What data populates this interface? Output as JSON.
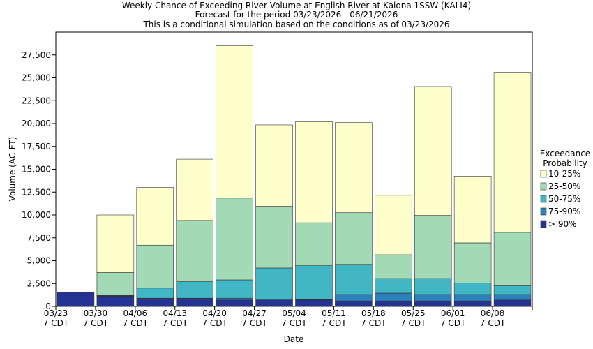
{
  "chart_data": {
    "type": "stacked-bar",
    "title": "Weekly Chance of Exceeding River Volume at English River at Kalona 1SSW (KALI4)",
    "subtitle": "Forecast for the period 03/23/2026 - 06/21/2026",
    "note": "This is a conditional simulation based on the conditions as of 03/23/2026",
    "x_label": "Date",
    "y_label": "Volume (AC-FT)",
    "legend_title": [
      "Exceedance",
      "Probability"
    ],
    "categories": [
      "03/23 7 CDT",
      "03/30 7 CDT",
      "04/06 7 CDT",
      "04/13 7 CDT",
      "04/20 7 CDT",
      "04/27 7 CDT",
      "05/04 7 CDT",
      "05/11 7 CDT",
      "05/18 7 CDT",
      "05/25 7 CDT",
      "06/01 7 CDT",
      "06/08 7 CDT"
    ],
    "series": [
      {
        "name": "> 90%",
        "color": "#253494",
        "values": [
          1530,
          1100,
          850,
          850,
          700,
          700,
          700,
          600,
          600,
          600,
          600,
          700
        ]
      },
      {
        "name": "75-90%",
        "color": "#2c7fb8",
        "values": [
          0,
          50,
          50,
          50,
          200,
          100,
          50,
          700,
          850,
          700,
          700,
          600
        ]
      },
      {
        "name": "50-75%",
        "color": "#41b6c4",
        "values": [
          0,
          50,
          1100,
          1800,
          2000,
          3400,
          3700,
          3300,
          1600,
          1750,
          1250,
          950
        ]
      },
      {
        "name": "25-50%",
        "color": "#a1dab4",
        "values": [
          0,
          2500,
          4700,
          6700,
          8950,
          6750,
          4700,
          5650,
          2600,
          6900,
          4400,
          5850
        ]
      },
      {
        "name": "10-25%",
        "color": "#ffffcc",
        "values": [
          0,
          6300,
          6300,
          6700,
          16650,
          8900,
          11050,
          9850,
          6500,
          14100,
          7300,
          17500
        ]
      }
    ],
    "ylim": [
      0,
      30000
    ],
    "yticks": [
      {
        "value": 0,
        "label": "0"
      },
      {
        "value": 2500,
        "label": "2,500"
      },
      {
        "value": 5000,
        "label": "5,000"
      },
      {
        "value": 7500,
        "label": "7,500"
      },
      {
        "value": 10000,
        "label": "10,000"
      },
      {
        "value": 12500,
        "label": "12,500"
      },
      {
        "value": 15000,
        "label": "15,000"
      },
      {
        "value": 17500,
        "label": "17,500"
      },
      {
        "value": 20000,
        "label": "20,000"
      },
      {
        "value": 22500,
        "label": "22,500"
      },
      {
        "value": 25000,
        "label": "25,000"
      },
      {
        "value": 27500,
        "label": "27,500"
      }
    ]
  }
}
